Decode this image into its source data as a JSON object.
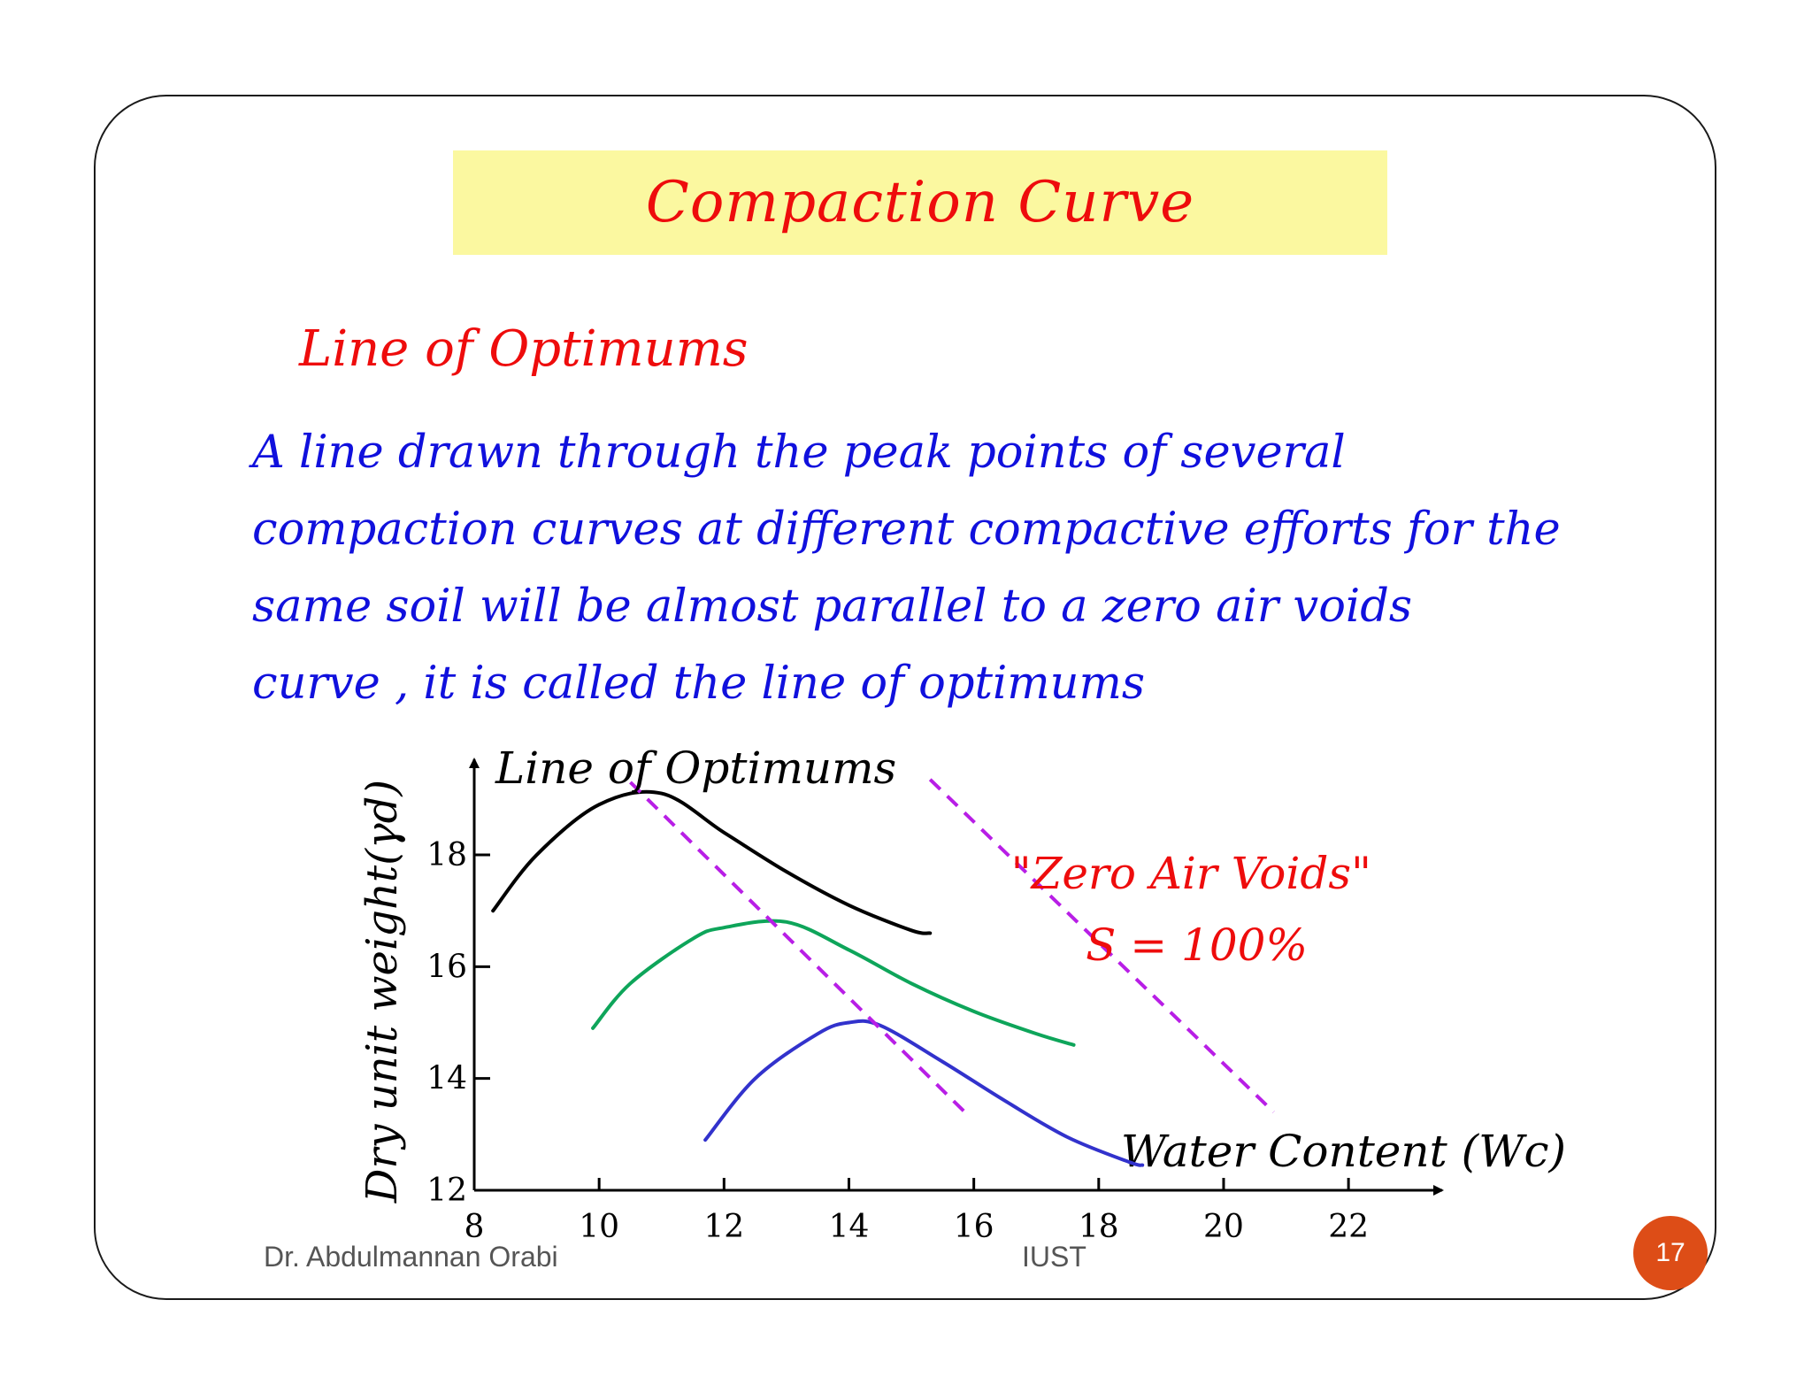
{
  "slide": {
    "title": "Compaction Curve",
    "subtitle": "Line of  Optimums",
    "body": "A line drawn through the peak points of  several\ncompaction curves at different compactive efforts for the\nsame soil will be almost parallel to a zero air voids\ncurve , it is called the line of  optimums"
  },
  "footer": {
    "author": "Dr. Abdulmannan Orabi",
    "org": "IUST",
    "page": "17"
  },
  "colors": {
    "title_bg": "#fbf8a0",
    "title_text": "#ee0c0c",
    "body_text": "#1010dd",
    "badge": "#dd4d17"
  },
  "chart_data": {
    "type": "line",
    "xlabel": "Water Content (Wc)",
    "ylabel": "Dry unit weight(γd)",
    "x_ticks": [
      "8",
      "10",
      "12",
      "14",
      "16",
      "18",
      "20",
      "22"
    ],
    "y_ticks": [
      "12",
      "14",
      "16",
      "18"
    ],
    "xlim": [
      8,
      23.5
    ],
    "ylim": [
      12,
      19.6
    ],
    "grid": false,
    "series": [
      {
        "color": "#000000",
        "x": [
          8.3,
          9.0,
          10.0,
          11.0,
          12.0,
          13.0,
          14.0,
          15.0,
          15.3
        ],
        "y": [
          17.0,
          18.0,
          18.9,
          19.1,
          18.4,
          17.7,
          17.1,
          16.65,
          16.6
        ]
      },
      {
        "color": "#0ea55a",
        "x": [
          9.9,
          10.5,
          11.5,
          12.0,
          13.0,
          14.0,
          15.0,
          16.0,
          17.0,
          17.6
        ],
        "y": [
          14.9,
          15.7,
          16.5,
          16.7,
          16.8,
          16.3,
          15.7,
          15.2,
          14.8,
          14.6
        ]
      },
      {
        "color": "#3232cc",
        "x": [
          11.7,
          12.5,
          13.5,
          14.0,
          14.5,
          15.5,
          16.5,
          17.5,
          18.5,
          18.7
        ],
        "y": [
          12.9,
          14.0,
          14.8,
          15.0,
          14.95,
          14.3,
          13.6,
          12.95,
          12.5,
          12.45
        ]
      }
    ],
    "reference_lines": [
      {
        "label": "Line of  Optimums",
        "style": "dashed",
        "color": "#b81ee6",
        "x": [
          10.5,
          15.9
        ],
        "y": [
          19.3,
          13.35
        ]
      },
      {
        "label": "\"Zero Air Voids\"",
        "label2": "S = 100%",
        "style": "dashed",
        "color": "#b81ee6",
        "x": [
          15.3,
          20.8
        ],
        "y": [
          19.35,
          13.4
        ]
      }
    ]
  }
}
